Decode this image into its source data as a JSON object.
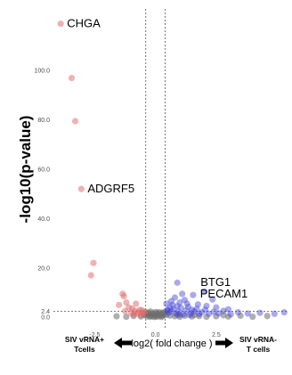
{
  "chart_data": {
    "type": "scatter",
    "title": "",
    "xlabel": "log2( fold change )",
    "ylabel": "-log10(p-value)",
    "xlim": [
      -4.2,
      5.4
    ],
    "ylim": [
      -5,
      125
    ],
    "grid": false,
    "x_ticks": [
      {
        "value": -2.5,
        "label": "-2.5"
      },
      {
        "value": 0.0,
        "label": "0.0"
      },
      {
        "value": 2.5,
        "label": "2.5"
      }
    ],
    "y_ticks": [
      {
        "value": 0.0,
        "label": "0.0"
      },
      {
        "value": 2.4,
        "label": "2.4"
      },
      {
        "value": 20.0,
        "label": "20.0"
      },
      {
        "value": 40.0,
        "label": "40.0"
      },
      {
        "value": 60.0,
        "label": "60.0"
      },
      {
        "value": 80.0,
        "label": "80.0"
      },
      {
        "value": 100.0,
        "label": "100.0"
      }
    ],
    "vlines": [
      -0.4,
      0.4
    ],
    "hline": 2.4,
    "colors": {
      "up_in_siv_vrna_pos": "#e06666",
      "up_in_siv_vrna_neg": "#4040d8",
      "not_significant": "#6e6e6e"
    },
    "left_direction": {
      "line1": "SIV vRNA+",
      "line2": "Tcells"
    },
    "right_direction": {
      "line1": "SIV vRNA-",
      "line2": "T cells"
    },
    "labeled_genes": [
      {
        "gene": "CHGA",
        "x": -3.9,
        "y": 119
      },
      {
        "gene": "ADGRF5",
        "x": -3.05,
        "y": 52
      },
      {
        "gene": "BTG1",
        "x": 2.0,
        "y": 10.5
      },
      {
        "gene": "PECAM1",
        "x": 2.35,
        "y": 7.2
      }
    ],
    "points_up_in_siv_vrna_pos": [
      [
        -3.9,
        119
      ],
      [
        -3.45,
        97
      ],
      [
        -3.3,
        79.5
      ],
      [
        -3.05,
        52
      ],
      [
        -2.55,
        22
      ],
      [
        -2.65,
        17
      ],
      [
        -1.35,
        9.5
      ],
      [
        -1.3,
        8.5
      ],
      [
        -1.5,
        5
      ],
      [
        -1.2,
        6
      ],
      [
        -1.1,
        4
      ],
      [
        -0.95,
        3.5
      ],
      [
        -0.85,
        2.5
      ],
      [
        -0.8,
        5.5
      ],
      [
        -0.75,
        1.5
      ],
      [
        -0.65,
        3
      ],
      [
        -0.6,
        0.8
      ],
      [
        -0.55,
        2.8
      ],
      [
        -0.5,
        1.8
      ],
      [
        -0.45,
        2.2
      ],
      [
        -1.0,
        1.8
      ],
      [
        -0.7,
        2.0
      ],
      [
        -0.9,
        1.2
      ],
      [
        -1.25,
        2.5
      ]
    ],
    "points_up_in_siv_vrna_neg": [
      [
        0.9,
        14
      ],
      [
        1.1,
        9.5
      ],
      [
        1.55,
        9
      ],
      [
        2.0,
        10.5
      ],
      [
        2.35,
        7.2
      ],
      [
        0.8,
        8
      ],
      [
        1.0,
        6
      ],
      [
        0.7,
        5
      ],
      [
        1.3,
        5.5
      ],
      [
        0.6,
        4
      ],
      [
        0.5,
        3
      ],
      [
        0.55,
        1.8
      ],
      [
        0.65,
        2.5
      ],
      [
        0.75,
        3.2
      ],
      [
        0.85,
        1.5
      ],
      [
        0.95,
        2.2
      ],
      [
        1.05,
        3.8
      ],
      [
        1.15,
        1.2
      ],
      [
        1.25,
        2.8
      ],
      [
        1.35,
        4.2
      ],
      [
        1.45,
        1.6
      ],
      [
        1.6,
        2.4
      ],
      [
        1.7,
        3.4
      ],
      [
        1.8,
        1.3
      ],
      [
        1.9,
        2.0
      ],
      [
        2.05,
        3.0
      ],
      [
        2.2,
        1.4
      ],
      [
        2.4,
        2.2
      ],
      [
        2.6,
        1.6
      ],
      [
        2.8,
        2.6
      ],
      [
        3.1,
        1.2
      ],
      [
        3.4,
        2.0
      ],
      [
        3.8,
        1.5
      ],
      [
        4.3,
        1.8
      ],
      [
        4.9,
        1.4
      ],
      [
        5.3,
        2.0
      ],
      [
        0.45,
        5.5
      ],
      [
        0.9,
        4.5
      ],
      [
        1.2,
        7
      ],
      [
        0.65,
        6.5
      ],
      [
        1.5,
        3.0
      ],
      [
        2.1,
        4.6
      ],
      [
        2.5,
        4.0
      ],
      [
        1.75,
        5.2
      ],
      [
        3.0,
        3.2
      ],
      [
        0.5,
        2.6
      ],
      [
        1.0,
        1.0
      ],
      [
        1.4,
        0.9
      ]
    ],
    "points_not_significant": [
      [
        -0.35,
        0.4
      ],
      [
        -0.3,
        1.2
      ],
      [
        -0.25,
        0.2
      ],
      [
        -0.2,
        0.8
      ],
      [
        -0.15,
        0.3
      ],
      [
        -0.1,
        1.0
      ],
      [
        -0.05,
        0.1
      ],
      [
        0.0,
        0.6
      ],
      [
        0.05,
        0.2
      ],
      [
        0.1,
        1.3
      ],
      [
        0.15,
        0.4
      ],
      [
        0.2,
        0.9
      ],
      [
        0.25,
        0.1
      ],
      [
        0.3,
        0.5
      ],
      [
        0.35,
        1.1
      ],
      [
        0.6,
        0.7
      ],
      [
        0.8,
        0.4
      ],
      [
        1.0,
        0.2
      ],
      [
        1.2,
        0.6
      ],
      [
        1.5,
        0.3
      ],
      [
        1.8,
        0.5
      ],
      [
        2.1,
        0.2
      ],
      [
        2.5,
        0.4
      ],
      [
        3.0,
        0.3
      ],
      [
        3.5,
        0.6
      ],
      [
        4.0,
        0.2
      ],
      [
        4.6,
        0.5
      ],
      [
        -0.6,
        0.3
      ],
      [
        -0.9,
        0.5
      ],
      [
        -1.2,
        0.2
      ],
      [
        -1.6,
        0.4
      ],
      [
        -0.45,
        0.9
      ],
      [
        0.45,
        0.9
      ],
      [
        0.9,
        1.0
      ],
      [
        1.6,
        0.9
      ],
      [
        2.8,
        0.8
      ],
      [
        -0.28,
        1.8
      ],
      [
        0.22,
        1.9
      ],
      [
        0.0,
        2.1
      ],
      [
        -0.12,
        1.6
      ],
      [
        0.12,
        2.0
      ],
      [
        0.32,
        1.7
      ],
      [
        -0.38,
        2.0
      ],
      [
        0.38,
        2.2
      ],
      [
        -0.2,
        2.3
      ],
      [
        0.05,
        1.5
      ]
    ]
  }
}
